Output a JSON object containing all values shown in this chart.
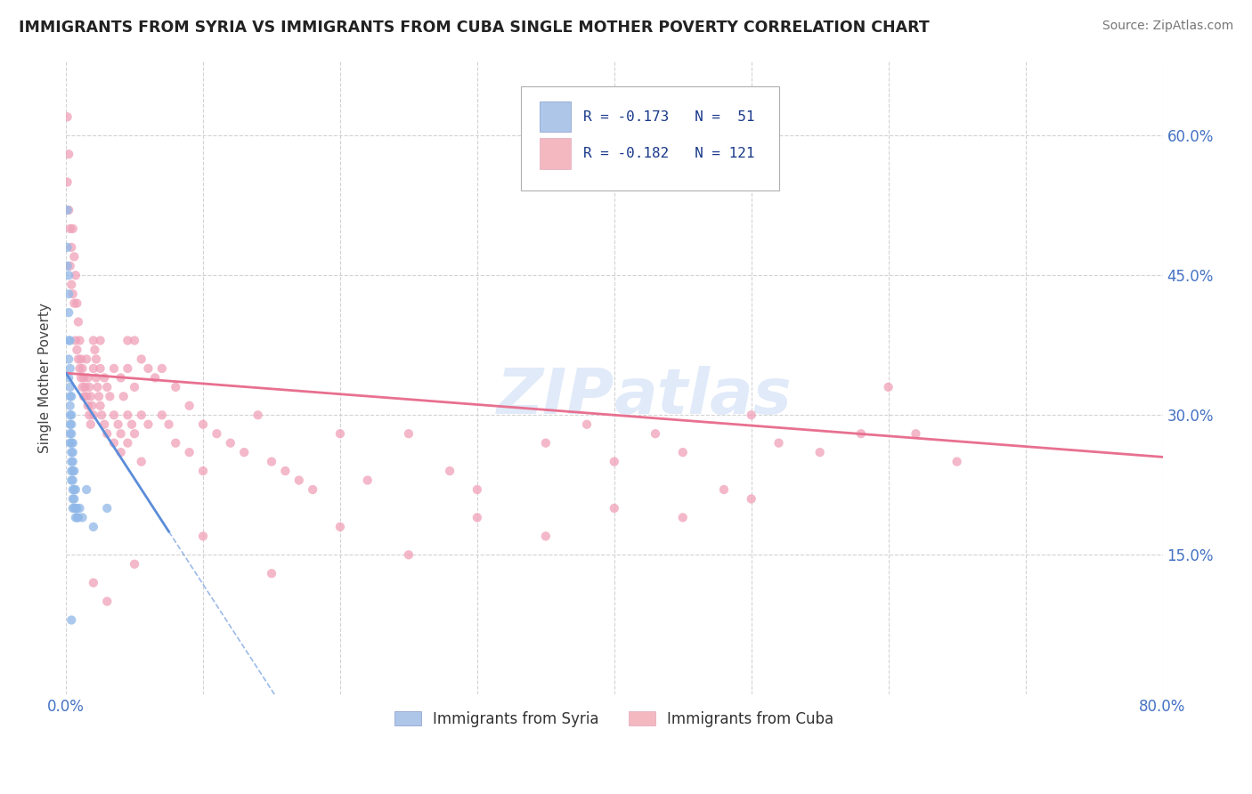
{
  "title": "IMMIGRANTS FROM SYRIA VS IMMIGRANTS FROM CUBA SINGLE MOTHER POVERTY CORRELATION CHART",
  "source": "Source: ZipAtlas.com",
  "ylabel": "Single Mother Poverty",
  "legend_syria": {
    "R": -0.173,
    "N": 51,
    "color": "#aec6e8",
    "label": "Immigrants from Syria"
  },
  "legend_cuba": {
    "R": -0.182,
    "N": 121,
    "color": "#f4b8c1",
    "label": "Immigrants from Cuba"
  },
  "syria_line_color": "#5b8dd9",
  "cuba_line_color": "#e87090",
  "syria_scatter_color": "#90b8e8",
  "cuba_scatter_color": "#f0a0b8",
  "tick_color": "#4472C4",
  "watermark": "ZIPAtlas",
  "syria_points": [
    [
      0.001,
      0.52
    ],
    [
      0.001,
      0.48
    ],
    [
      0.001,
      0.46
    ],
    [
      0.002,
      0.43
    ],
    [
      0.002,
      0.41
    ],
    [
      0.002,
      0.38
    ],
    [
      0.002,
      0.36
    ],
    [
      0.002,
      0.34
    ],
    [
      0.002,
      0.45
    ],
    [
      0.003,
      0.38
    ],
    [
      0.003,
      0.35
    ],
    [
      0.003,
      0.33
    ],
    [
      0.003,
      0.32
    ],
    [
      0.003,
      0.31
    ],
    [
      0.003,
      0.3
    ],
    [
      0.003,
      0.28
    ],
    [
      0.003,
      0.27
    ],
    [
      0.003,
      0.29
    ],
    [
      0.004,
      0.32
    ],
    [
      0.004,
      0.29
    ],
    [
      0.004,
      0.28
    ],
    [
      0.004,
      0.3
    ],
    [
      0.004,
      0.26
    ],
    [
      0.004,
      0.27
    ],
    [
      0.004,
      0.25
    ],
    [
      0.004,
      0.24
    ],
    [
      0.004,
      0.23
    ],
    [
      0.005,
      0.25
    ],
    [
      0.005,
      0.27
    ],
    [
      0.005,
      0.26
    ],
    [
      0.005,
      0.24
    ],
    [
      0.005,
      0.23
    ],
    [
      0.005,
      0.22
    ],
    [
      0.005,
      0.21
    ],
    [
      0.005,
      0.2
    ],
    [
      0.006,
      0.24
    ],
    [
      0.006,
      0.22
    ],
    [
      0.006,
      0.21
    ],
    [
      0.006,
      0.2
    ],
    [
      0.007,
      0.22
    ],
    [
      0.007,
      0.2
    ],
    [
      0.007,
      0.19
    ],
    [
      0.008,
      0.2
    ],
    [
      0.008,
      0.19
    ],
    [
      0.009,
      0.19
    ],
    [
      0.01,
      0.2
    ],
    [
      0.012,
      0.19
    ],
    [
      0.015,
      0.22
    ],
    [
      0.02,
      0.18
    ],
    [
      0.004,
      0.08
    ],
    [
      0.03,
      0.2
    ]
  ],
  "cuba_points": [
    [
      0.001,
      0.62
    ],
    [
      0.001,
      0.55
    ],
    [
      0.002,
      0.58
    ],
    [
      0.002,
      0.52
    ],
    [
      0.003,
      0.5
    ],
    [
      0.003,
      0.46
    ],
    [
      0.004,
      0.48
    ],
    [
      0.004,
      0.44
    ],
    [
      0.005,
      0.5
    ],
    [
      0.005,
      0.43
    ],
    [
      0.006,
      0.47
    ],
    [
      0.006,
      0.42
    ],
    [
      0.007,
      0.45
    ],
    [
      0.007,
      0.38
    ],
    [
      0.008,
      0.42
    ],
    [
      0.008,
      0.37
    ],
    [
      0.009,
      0.4
    ],
    [
      0.009,
      0.36
    ],
    [
      0.01,
      0.38
    ],
    [
      0.01,
      0.35
    ],
    [
      0.011,
      0.36
    ],
    [
      0.011,
      0.34
    ],
    [
      0.012,
      0.35
    ],
    [
      0.012,
      0.33
    ],
    [
      0.013,
      0.34
    ],
    [
      0.013,
      0.32
    ],
    [
      0.014,
      0.33
    ],
    [
      0.015,
      0.36
    ],
    [
      0.015,
      0.32
    ],
    [
      0.016,
      0.34
    ],
    [
      0.016,
      0.31
    ],
    [
      0.017,
      0.33
    ],
    [
      0.017,
      0.3
    ],
    [
      0.018,
      0.32
    ],
    [
      0.018,
      0.29
    ],
    [
      0.019,
      0.31
    ],
    [
      0.02,
      0.38
    ],
    [
      0.02,
      0.35
    ],
    [
      0.02,
      0.3
    ],
    [
      0.021,
      0.37
    ],
    [
      0.022,
      0.36
    ],
    [
      0.022,
      0.34
    ],
    [
      0.023,
      0.33
    ],
    [
      0.024,
      0.32
    ],
    [
      0.025,
      0.38
    ],
    [
      0.025,
      0.35
    ],
    [
      0.025,
      0.31
    ],
    [
      0.026,
      0.3
    ],
    [
      0.028,
      0.34
    ],
    [
      0.028,
      0.29
    ],
    [
      0.03,
      0.33
    ],
    [
      0.03,
      0.28
    ],
    [
      0.032,
      0.32
    ],
    [
      0.035,
      0.35
    ],
    [
      0.035,
      0.3
    ],
    [
      0.035,
      0.27
    ],
    [
      0.038,
      0.29
    ],
    [
      0.04,
      0.34
    ],
    [
      0.04,
      0.28
    ],
    [
      0.04,
      0.26
    ],
    [
      0.042,
      0.32
    ],
    [
      0.045,
      0.38
    ],
    [
      0.045,
      0.35
    ],
    [
      0.045,
      0.3
    ],
    [
      0.045,
      0.27
    ],
    [
      0.048,
      0.29
    ],
    [
      0.05,
      0.38
    ],
    [
      0.05,
      0.33
    ],
    [
      0.05,
      0.28
    ],
    [
      0.055,
      0.36
    ],
    [
      0.055,
      0.3
    ],
    [
      0.055,
      0.25
    ],
    [
      0.06,
      0.35
    ],
    [
      0.06,
      0.29
    ],
    [
      0.065,
      0.34
    ],
    [
      0.07,
      0.35
    ],
    [
      0.07,
      0.3
    ],
    [
      0.075,
      0.29
    ],
    [
      0.08,
      0.33
    ],
    [
      0.08,
      0.27
    ],
    [
      0.09,
      0.31
    ],
    [
      0.09,
      0.26
    ],
    [
      0.1,
      0.29
    ],
    [
      0.1,
      0.24
    ],
    [
      0.11,
      0.28
    ],
    [
      0.12,
      0.27
    ],
    [
      0.13,
      0.26
    ],
    [
      0.14,
      0.3
    ],
    [
      0.15,
      0.25
    ],
    [
      0.16,
      0.24
    ],
    [
      0.17,
      0.23
    ],
    [
      0.18,
      0.22
    ],
    [
      0.2,
      0.28
    ],
    [
      0.22,
      0.23
    ],
    [
      0.25,
      0.28
    ],
    [
      0.28,
      0.24
    ],
    [
      0.3,
      0.22
    ],
    [
      0.35,
      0.27
    ],
    [
      0.38,
      0.29
    ],
    [
      0.4,
      0.25
    ],
    [
      0.43,
      0.28
    ],
    [
      0.45,
      0.26
    ],
    [
      0.48,
      0.22
    ],
    [
      0.5,
      0.3
    ],
    [
      0.52,
      0.27
    ],
    [
      0.55,
      0.26
    ],
    [
      0.58,
      0.28
    ],
    [
      0.6,
      0.33
    ],
    [
      0.62,
      0.28
    ],
    [
      0.65,
      0.25
    ],
    [
      0.02,
      0.12
    ],
    [
      0.05,
      0.14
    ],
    [
      0.1,
      0.17
    ],
    [
      0.15,
      0.13
    ],
    [
      0.2,
      0.18
    ],
    [
      0.3,
      0.19
    ],
    [
      0.4,
      0.2
    ],
    [
      0.25,
      0.15
    ],
    [
      0.35,
      0.17
    ],
    [
      0.45,
      0.19
    ],
    [
      0.5,
      0.21
    ],
    [
      0.03,
      0.1
    ]
  ],
  "xmin": 0.0,
  "xmax": 0.8,
  "ymin": 0.0,
  "ymax": 0.68,
  "ytick_vals": [
    0.15,
    0.3,
    0.45,
    0.6
  ],
  "ytick_labels": [
    "15.0%",
    "30.0%",
    "45.0%",
    "60.0%"
  ],
  "syria_trend_x": [
    0.0,
    0.08
  ],
  "syria_trend_y_start": 0.345,
  "syria_trend_y_end": 0.18,
  "cuba_trend_x": [
    0.0,
    0.8
  ],
  "cuba_trend_y_start": 0.345,
  "cuba_trend_y_end": 0.255
}
